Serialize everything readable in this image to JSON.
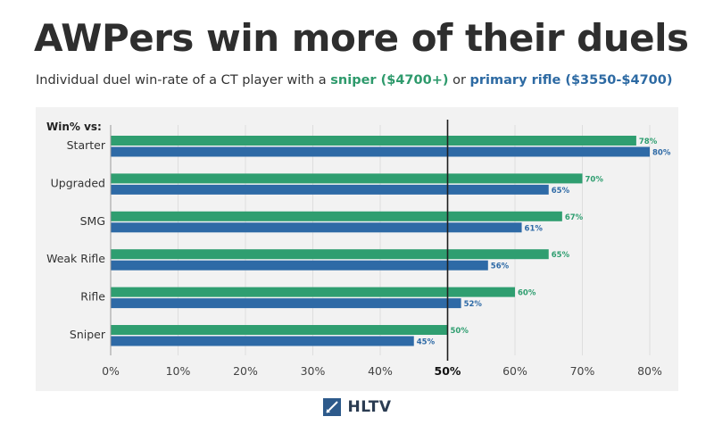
{
  "title": "AWPers win more of their duels",
  "subtitle": {
    "prefix": "Individual duel win-rate of a CT player with a ",
    "sniper": "sniper ($4700+)",
    "middle": " or ",
    "rifle": "primary rifle ($3550-$4700)"
  },
  "footer": {
    "logo_text": "HLTV",
    "logo_icon": "hltv-logo-icon"
  },
  "colors": {
    "sniper": "#2f9e70",
    "rifle": "#2e6aa6",
    "panel": "#f2f2f2"
  },
  "chart_data": {
    "type": "bar",
    "orientation": "horizontal",
    "category_header": "Win% vs:",
    "categories": [
      "Starter",
      "Upgraded",
      "SMG",
      "Weak Rifle",
      "Rifle",
      "Sniper"
    ],
    "series": [
      {
        "name": "sniper ($4700+)",
        "color": "#2f9e70",
        "values": [
          78,
          70,
          67,
          65,
          60,
          50
        ]
      },
      {
        "name": "primary rifle ($3550-$4700)",
        "color": "#2e6aa6",
        "values": [
          80,
          65,
          61,
          56,
          52,
          45
        ]
      }
    ],
    "value_labels": [
      [
        "78%",
        "70%",
        "67%",
        "65%",
        "60%",
        "50%"
      ],
      [
        "80%",
        "65%",
        "61%",
        "56%",
        "52%",
        "45%"
      ]
    ],
    "xlim": [
      0,
      80
    ],
    "xticks": [
      0,
      10,
      20,
      30,
      40,
      50,
      60,
      70,
      80
    ],
    "xtick_labels": [
      "0%",
      "10%",
      "20%",
      "30%",
      "40%",
      "50%",
      "60%",
      "70%",
      "80%"
    ],
    "reference_line": 50,
    "grid": true
  }
}
